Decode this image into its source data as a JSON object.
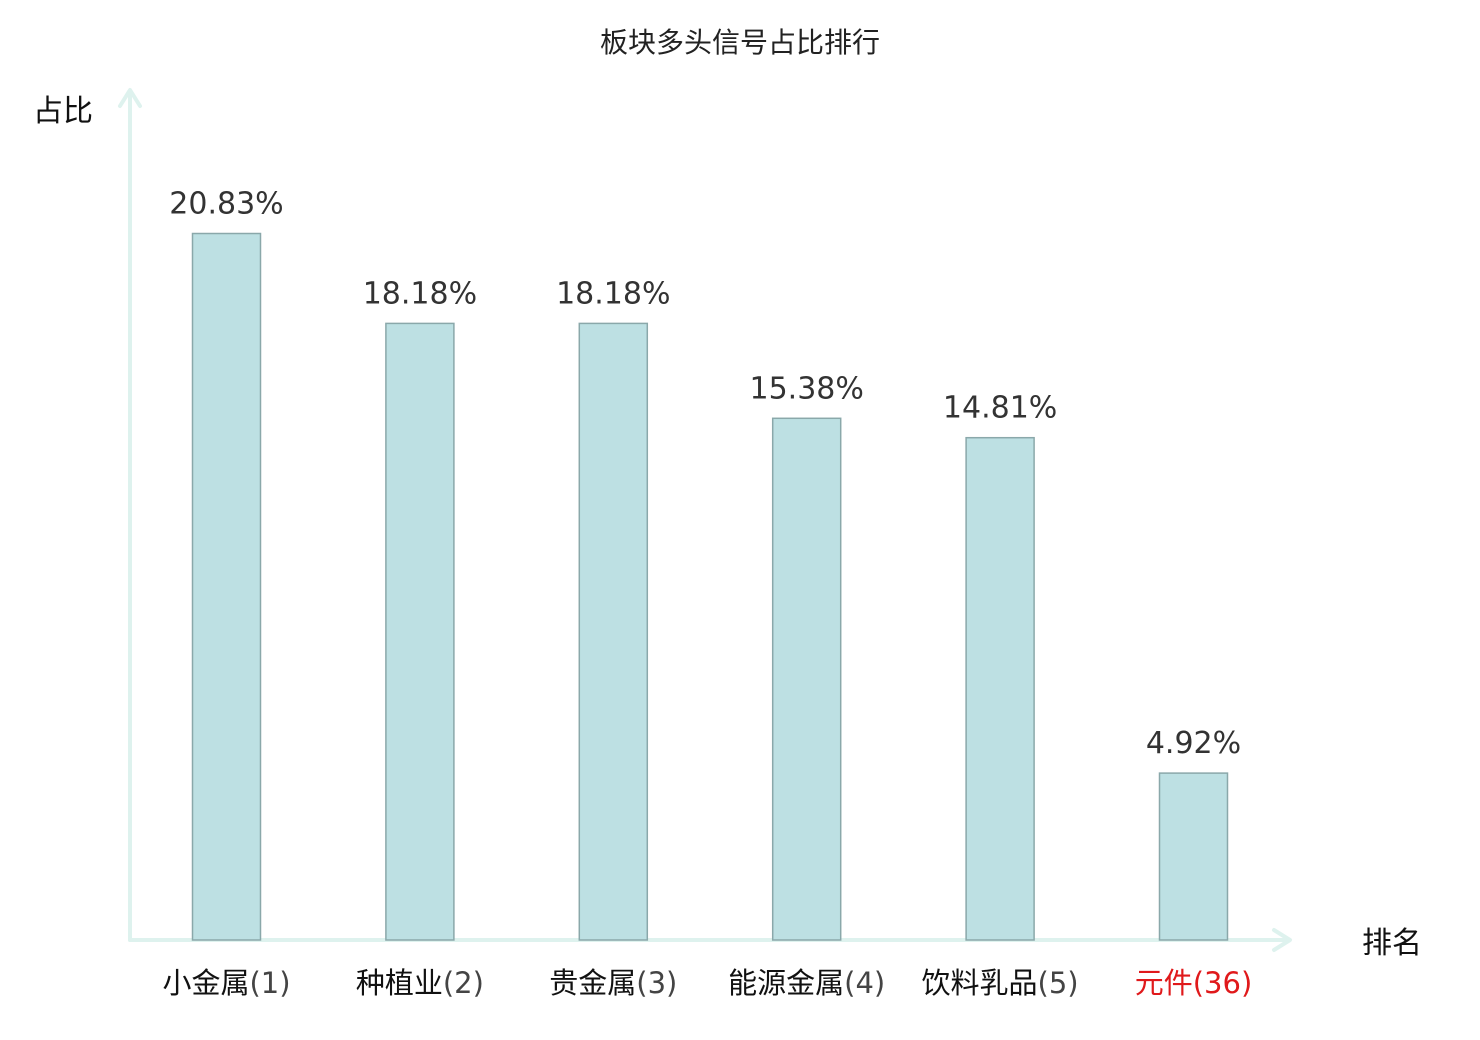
{
  "chart_data": {
    "type": "bar",
    "title": "板块多头信号占比排行",
    "ylabel": "占比",
    "xlabel": "排名",
    "ylim": [
      0,
      25
    ],
    "grid": false,
    "legend": "none",
    "categories": [
      {
        "name": "小金属",
        "rank": "(1)",
        "highlight": false
      },
      {
        "name": "种植业",
        "rank": "(2)",
        "highlight": false
      },
      {
        "name": "贵金属",
        "rank": "(3)",
        "highlight": false
      },
      {
        "name": "能源金属",
        "rank": "(4)",
        "highlight": false
      },
      {
        "name": "饮料乳品",
        "rank": "(5)",
        "highlight": false
      },
      {
        "name": "元件",
        "rank": "(36)",
        "highlight": true
      }
    ],
    "values": [
      20.83,
      18.18,
      18.18,
      15.38,
      14.81,
      4.92
    ],
    "value_labels": [
      "20.83%",
      "18.18%",
      "18.18%",
      "15.38%",
      "14.81%",
      "4.92%"
    ],
    "colors": {
      "bar_fill": "#bde0e3",
      "bar_stroke": "#8aa8aa",
      "axis": "#def2ee",
      "highlight_text": "#e0191b",
      "normal_name_text": "#111111",
      "normal_rank_text": "#444444"
    }
  }
}
